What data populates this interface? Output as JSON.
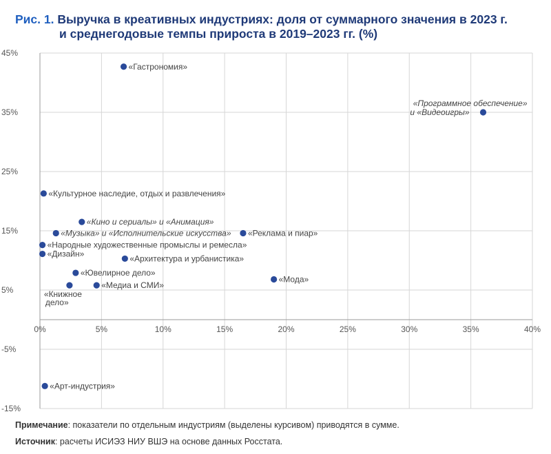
{
  "title": {
    "fig_label": "Рис. 1.",
    "line1": "Выручка в креативных индустриях: доля от суммарного значения в 2023 г.",
    "line2": "и среднегодовые темпы прироста в 2019–2023 гг. (%)"
  },
  "notes": {
    "note_label": "Примечание",
    "note_text": ": показатели по отдельным индустриям (выделены курсивом) приводятся в сумме.",
    "source_label": "Источник",
    "source_text": ": расчеты ИСИЭЗ НИУ ВШЭ на основе данных Росстата."
  },
  "chart_data": {
    "type": "scatter",
    "xlim": [
      0,
      40
    ],
    "ylim": [
      -15,
      45
    ],
    "x_ticks": [
      0,
      5,
      10,
      15,
      20,
      25,
      30,
      35,
      40
    ],
    "y_ticks": [
      -15,
      -5,
      5,
      15,
      25,
      35,
      45
    ],
    "x_tick_labels": [
      "0%",
      "5%",
      "10%",
      "15%",
      "20%",
      "25%",
      "30%",
      "35%",
      "40%"
    ],
    "y_tick_labels": [
      "-15%",
      "-5%",
      "5%",
      "15%",
      "25%",
      "35%",
      "45%"
    ],
    "grid": true,
    "point_color": "#2a4a9a",
    "points": [
      {
        "x": 6.8,
        "y": 42.7,
        "label": "«Гастрономия»",
        "italic": false
      },
      {
        "x": 36.0,
        "y": 35.0,
        "label": "«Программное обеспечение» и «Видеоигры»",
        "italic": true
      },
      {
        "x": 0.3,
        "y": 21.3,
        "label": "«Культурное наследие, отдых и развлечения»",
        "italic": false
      },
      {
        "x": 3.4,
        "y": 16.5,
        "label": "«Кино и сериалы» и «Анимация»",
        "italic": true
      },
      {
        "x": 1.3,
        "y": 14.6,
        "label": "«Музыка» и «Исполнительские искусства»",
        "italic": true
      },
      {
        "x": 16.5,
        "y": 14.6,
        "label": "«Реклама и пиар»",
        "italic": false
      },
      {
        "x": 0.2,
        "y": 12.6,
        "label": "«Народные художественные промыслы и ремесла»",
        "italic": false
      },
      {
        "x": 0.2,
        "y": 11.1,
        "label": "«Дизайн»",
        "italic": false
      },
      {
        "x": 6.9,
        "y": 10.3,
        "label": "«Архитектура и урбанистика»",
        "italic": false
      },
      {
        "x": 2.9,
        "y": 7.9,
        "label": "«Ювелирное дело»",
        "italic": false
      },
      {
        "x": 19.0,
        "y": 6.8,
        "label": "«Мода»",
        "italic": false
      },
      {
        "x": 4.6,
        "y": 5.8,
        "label": "«Медиа и СМИ»",
        "italic": false
      },
      {
        "x": 2.4,
        "y": 5.8,
        "label": "«Книжное дело»",
        "italic": false
      },
      {
        "x": 0.4,
        "y": -11.2,
        "label": "«Арт-индустрия»",
        "italic": false
      }
    ]
  }
}
